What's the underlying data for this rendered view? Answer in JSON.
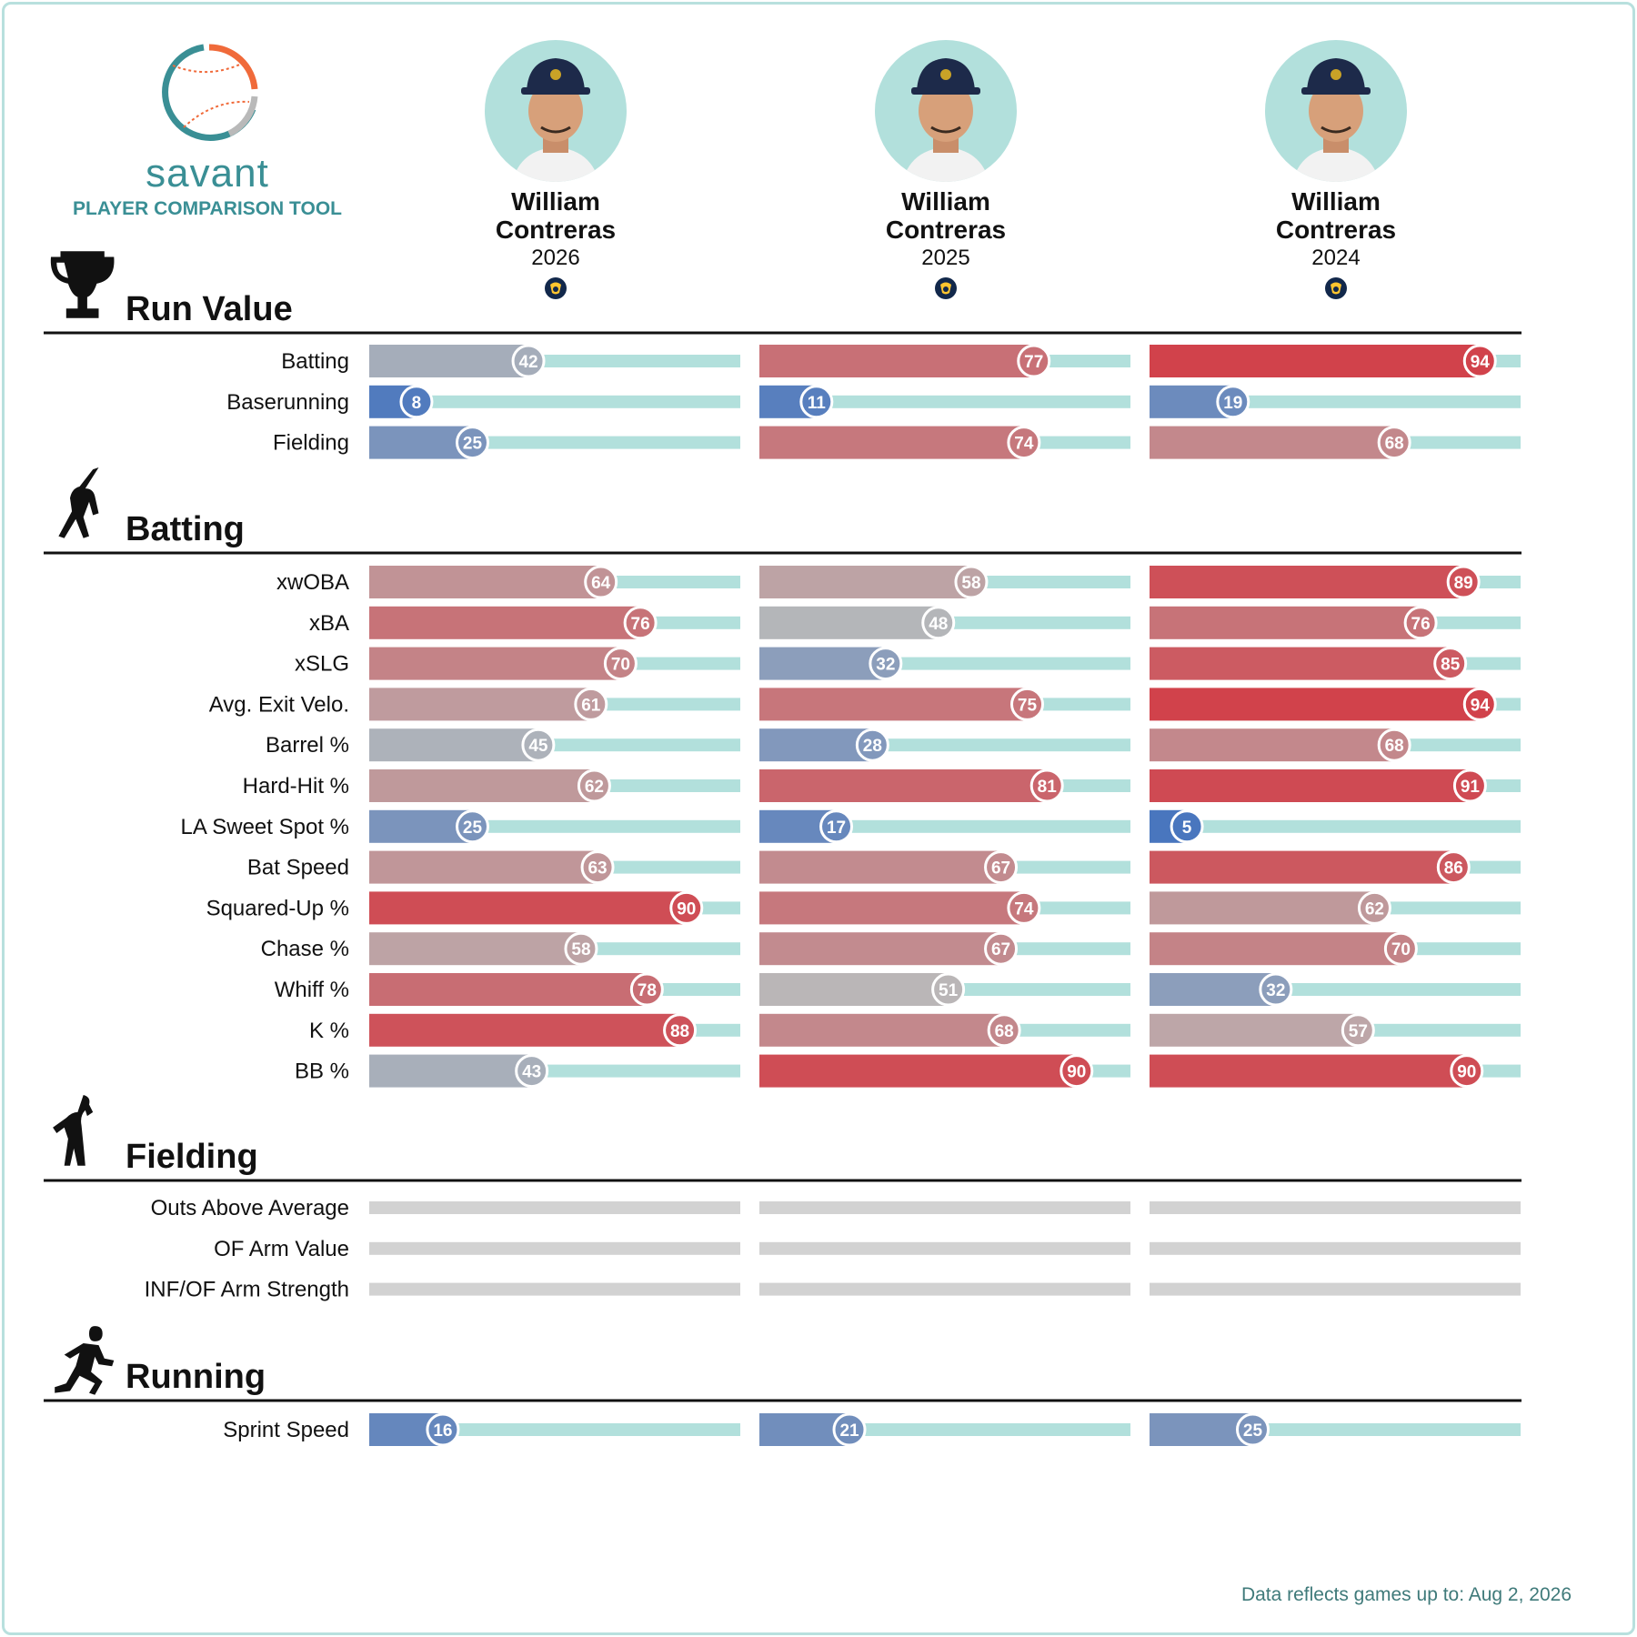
{
  "brand": {
    "name": "savant",
    "subtitle": "PLAYER COMPARISON TOOL"
  },
  "players": [
    {
      "name_line1": "William",
      "name_line2": "Contreras",
      "year": "2026",
      "team_logo_icon": "brewers-logo-icon"
    },
    {
      "name_line1": "William",
      "name_line2": "Contreras",
      "year": "2025",
      "team_logo_icon": "brewers-logo-icon"
    },
    {
      "name_line1": "William",
      "name_line2": "Contreras",
      "year": "2024",
      "team_logo_icon": "brewers-logo-icon"
    }
  ],
  "chart_data": {
    "type": "bar",
    "value_type": "percentile",
    "xlim": [
      0,
      100
    ],
    "columns": [
      "2026",
      "2025",
      "2024"
    ],
    "colors": {
      "low": "#3d6fbf",
      "mid": "#b9b9b9",
      "high": "#d4323c",
      "track": "#b2e0dc",
      "empty": "#d2d2d2"
    },
    "sections": [
      {
        "title": "Run Value",
        "icon": "trophy-icon",
        "metrics": [
          {
            "label": "Batting",
            "values": [
              42,
              77,
              94
            ]
          },
          {
            "label": "Baserunning",
            "values": [
              8,
              11,
              19
            ]
          },
          {
            "label": "Fielding",
            "values": [
              25,
              74,
              68
            ]
          }
        ]
      },
      {
        "title": "Batting",
        "icon": "batter-icon",
        "metrics": [
          {
            "label": "xwOBA",
            "values": [
              64,
              58,
              89
            ]
          },
          {
            "label": "xBA",
            "values": [
              76,
              48,
              76
            ]
          },
          {
            "label": "xSLG",
            "values": [
              70,
              32,
              85
            ]
          },
          {
            "label": "Avg. Exit Velo.",
            "values": [
              61,
              75,
              94
            ]
          },
          {
            "label": "Barrel %",
            "values": [
              45,
              28,
              68
            ]
          },
          {
            "label": "Hard-Hit %",
            "values": [
              62,
              81,
              91
            ]
          },
          {
            "label": "LA Sweet Spot %",
            "values": [
              25,
              17,
              5
            ]
          },
          {
            "label": "Bat Speed",
            "values": [
              63,
              67,
              86
            ]
          },
          {
            "label": "Squared-Up %",
            "values": [
              90,
              74,
              62
            ]
          },
          {
            "label": "Chase %",
            "values": [
              58,
              67,
              70
            ]
          },
          {
            "label": "Whiff %",
            "values": [
              78,
              51,
              32
            ]
          },
          {
            "label": "K %",
            "values": [
              88,
              68,
              57
            ]
          },
          {
            "label": "BB %",
            "values": [
              43,
              90,
              90
            ]
          }
        ]
      },
      {
        "title": "Fielding",
        "icon": "fielder-icon",
        "metrics": [
          {
            "label": "Outs Above Average",
            "values": [
              null,
              null,
              null
            ]
          },
          {
            "label": "OF Arm Value",
            "values": [
              null,
              null,
              null
            ]
          },
          {
            "label": "INF/OF Arm Strength",
            "values": [
              null,
              null,
              null
            ]
          }
        ]
      },
      {
        "title": "Running",
        "icon": "runner-icon",
        "metrics": [
          {
            "label": "Sprint Speed",
            "values": [
              16,
              21,
              25
            ]
          }
        ]
      }
    ]
  },
  "footer": {
    "note": "Data reflects games up to: Aug 2, 2026"
  }
}
